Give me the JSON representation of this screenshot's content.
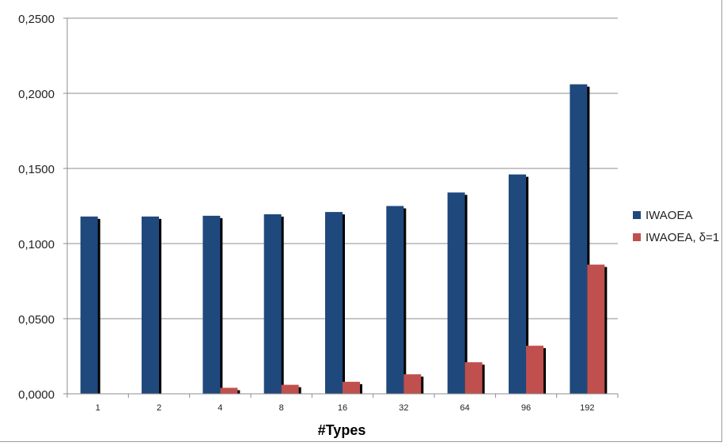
{
  "chart_data": {
    "type": "bar",
    "xlabel": "#Types",
    "ylabel": "",
    "categories": [
      "1",
      "2",
      "4",
      "8",
      "16",
      "32",
      "64",
      "96",
      "192"
    ],
    "ylim": [
      0,
      0.25
    ],
    "yticks": [
      "0,0000",
      "0,0500",
      "0,1000",
      "0,1500",
      "0,2000",
      "0,2500"
    ],
    "grid": true,
    "legend_position": "right",
    "series": [
      {
        "name": "IWAOEA",
        "color": "#1f497d",
        "values": [
          0.118,
          0.118,
          0.1185,
          0.1195,
          0.121,
          0.125,
          0.134,
          0.146,
          0.206
        ]
      },
      {
        "name": "IWAOEA, δ=1",
        "color": "#c0504d",
        "values": [
          0.0,
          0.0,
          0.004,
          0.006,
          0.008,
          0.013,
          0.021,
          0.032,
          0.086
        ]
      }
    ]
  }
}
